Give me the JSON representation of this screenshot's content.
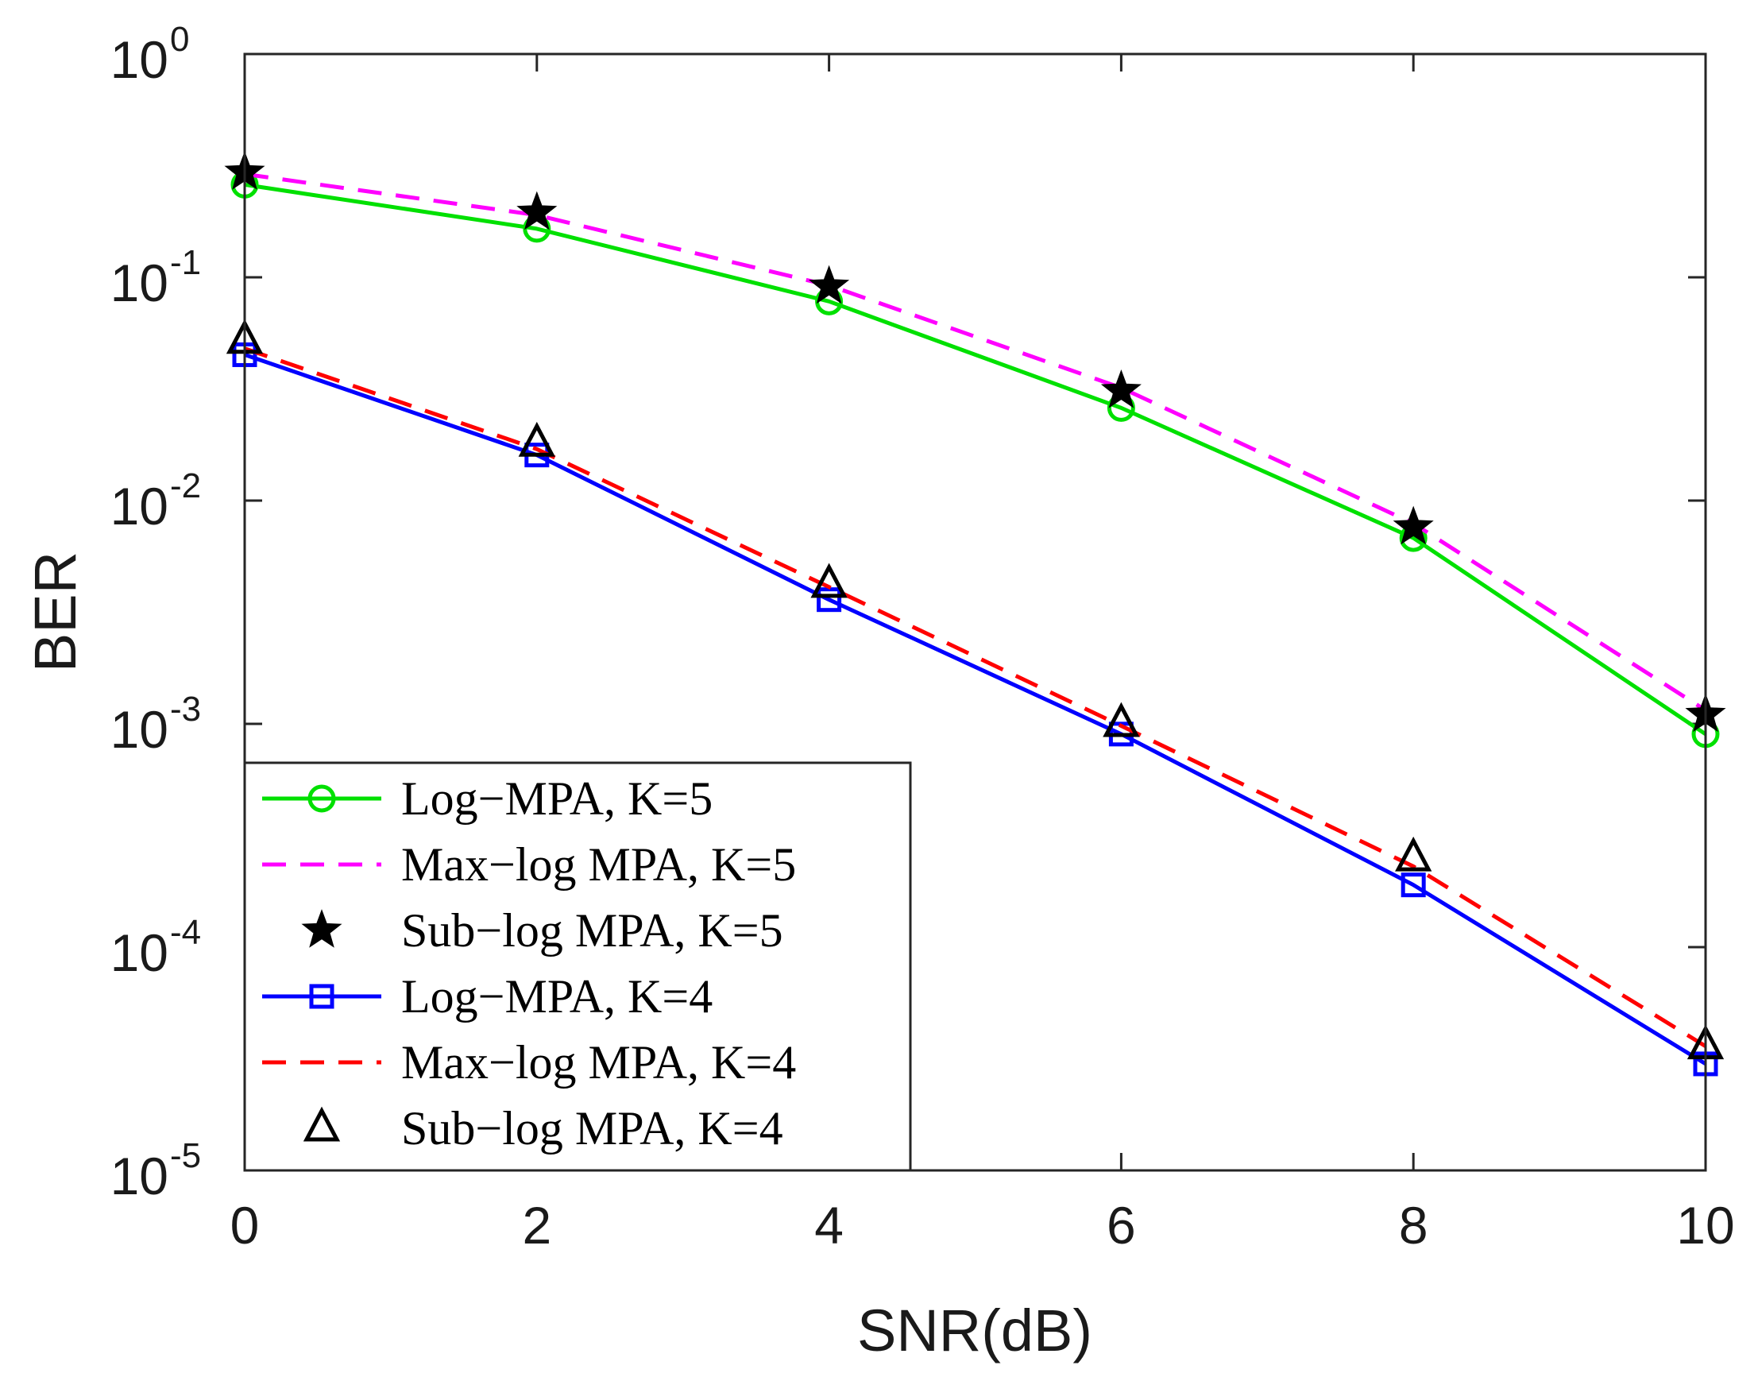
{
  "chart_data": {
    "type": "line",
    "title": "",
    "xlabel": "SNR(dB)",
    "ylabel": "BER",
    "xlim": [
      0,
      10
    ],
    "ylim": [
      1e-05,
      1
    ],
    "yscale": "log",
    "x_ticks": [
      "0",
      "2",
      "4",
      "6",
      "8",
      "10"
    ],
    "y_ticks": [
      {
        "base": "10",
        "exp": "0",
        "value": 1
      },
      {
        "base": "10",
        "exp": "-1",
        "value": 0.1
      },
      {
        "base": "10",
        "exp": "-2",
        "value": 0.01
      },
      {
        "base": "10",
        "exp": "-3",
        "value": 0.001
      },
      {
        "base": "10",
        "exp": "-4",
        "value": 0.0001
      },
      {
        "base": "10",
        "exp": "-5",
        "value": 1e-05
      }
    ],
    "x": [
      0,
      2,
      4,
      6,
      8,
      10
    ],
    "legend_position": "bottom-left",
    "series": [
      {
        "name": "Log−MPA, K=5",
        "color": "#00e000",
        "line": "solid",
        "marker": "circle",
        "values": [
          0.26,
          0.165,
          0.078,
          0.026,
          0.0068,
          0.0009
        ]
      },
      {
        "name": "Max−log MPA, K=5",
        "color": "#ff00ff",
        "line": "dashed",
        "marker": "none",
        "values": [
          0.29,
          0.19,
          0.092,
          0.032,
          0.0079,
          0.00115
        ]
      },
      {
        "name": "Sub−log MPA, K=5",
        "color": "#000000",
        "line": "none",
        "marker": "star",
        "values": [
          0.295,
          0.195,
          0.091,
          0.031,
          0.0076,
          0.0011
        ]
      },
      {
        "name": "Log−MPA, K=4",
        "color": "#0000ff",
        "line": "solid",
        "marker": "square",
        "values": [
          0.045,
          0.016,
          0.0036,
          0.0009,
          0.00019,
          3e-05
        ]
      },
      {
        "name": "Max−log MPA, K=4",
        "color": "#ff0000",
        "line": "dashed",
        "marker": "none",
        "values": [
          0.048,
          0.017,
          0.0041,
          0.00098,
          0.00023,
          3.6e-05
        ]
      },
      {
        "name": "Sub−log MPA, K=4",
        "color": "#000000",
        "line": "none",
        "marker": "triangle",
        "values": [
          0.052,
          0.018,
          0.0042,
          0.001,
          0.00025,
          3.6e-05
        ]
      }
    ]
  }
}
